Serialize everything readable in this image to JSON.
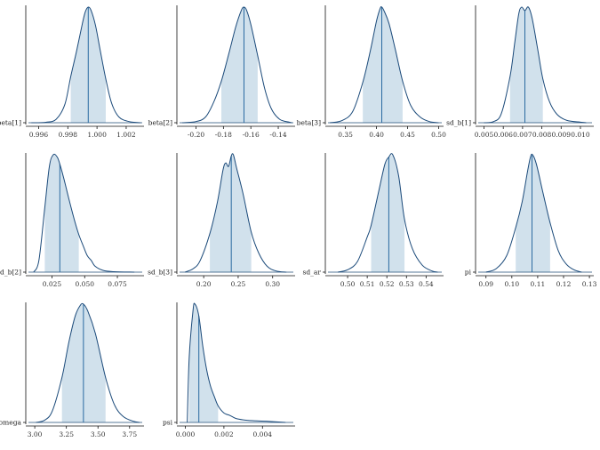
{
  "chart_data": {
    "type": "area",
    "title": "",
    "panels": [
      {
        "param": "beta[1]",
        "xlim": [
          0.9953,
          1.0031
        ],
        "ticks": [
          0.996,
          0.998,
          1.0,
          1.002
        ],
        "tick_labels": [
          "0.996",
          "0.998",
          "1.000",
          "1.002"
        ],
        "median": 0.9994,
        "interval": [
          0.9982,
          1.0006
        ],
        "density": [
          [
            0.9955,
            0
          ],
          [
            0.9965,
            0.004
          ],
          [
            0.9972,
            0.03
          ],
          [
            0.9978,
            0.16
          ],
          [
            0.9982,
            0.4
          ],
          [
            0.9986,
            0.62
          ],
          [
            0.999,
            0.86
          ],
          [
            0.9992,
            0.96
          ],
          [
            0.9994,
            1.0
          ],
          [
            0.9996,
            0.97
          ],
          [
            0.9999,
            0.84
          ],
          [
            1.0002,
            0.64
          ],
          [
            1.0006,
            0.38
          ],
          [
            1.001,
            0.17
          ],
          [
            1.0015,
            0.05
          ],
          [
            1.0022,
            0.01
          ],
          [
            1.003,
            0
          ]
        ]
      },
      {
        "param": "beta[2]",
        "xlim": [
          -0.212,
          -0.129
        ],
        "ticks": [
          -0.2,
          -0.18,
          -0.16,
          -0.14
        ],
        "tick_labels": [
          "-0.20",
          "-0.18",
          "-0.16",
          "-0.14"
        ],
        "median": -0.165,
        "interval": [
          -0.1815,
          -0.155
        ],
        "density": [
          [
            -0.21,
            0
          ],
          [
            -0.2,
            0.01
          ],
          [
            -0.193,
            0.05
          ],
          [
            -0.187,
            0.18
          ],
          [
            -0.1815,
            0.36
          ],
          [
            -0.176,
            0.6
          ],
          [
            -0.171,
            0.83
          ],
          [
            -0.167,
            0.97
          ],
          [
            -0.165,
            1.0
          ],
          [
            -0.163,
            0.97
          ],
          [
            -0.16,
            0.85
          ],
          [
            -0.155,
            0.58
          ],
          [
            -0.15,
            0.3
          ],
          [
            -0.145,
            0.12
          ],
          [
            -0.139,
            0.03
          ],
          [
            -0.132,
            0.005
          ],
          [
            -0.13,
            0
          ]
        ]
      },
      {
        "param": "beta[3]",
        "xlim": [
          0.322,
          0.505
        ],
        "ticks": [
          0.35,
          0.4,
          0.45,
          0.5
        ],
        "tick_labels": [
          "0.35",
          "0.40",
          "0.45",
          "0.50"
        ],
        "median": 0.4085,
        "interval": [
          0.378,
          0.442
        ],
        "density": [
          [
            0.325,
            0
          ],
          [
            0.345,
            0.02
          ],
          [
            0.362,
            0.1
          ],
          [
            0.378,
            0.35
          ],
          [
            0.39,
            0.62
          ],
          [
            0.4,
            0.88
          ],
          [
            0.406,
            0.99
          ],
          [
            0.4085,
            1.0
          ],
          [
            0.412,
            0.97
          ],
          [
            0.42,
            0.86
          ],
          [
            0.43,
            0.64
          ],
          [
            0.442,
            0.36
          ],
          [
            0.455,
            0.15
          ],
          [
            0.47,
            0.05
          ],
          [
            0.485,
            0.01
          ],
          [
            0.5,
            0
          ]
        ]
      },
      {
        "param": "sd_b[1]",
        "xlim": [
          0.0047,
          0.0106
        ],
        "ticks": [
          0.005,
          0.006,
          0.007,
          0.008,
          0.009,
          0.01
        ],
        "tick_labels": [
          "0.005",
          "0.006",
          "0.007",
          "0.008",
          "0.009",
          "0.010"
        ],
        "median": 0.00712,
        "interval": [
          0.00635,
          0.00805
        ],
        "density": [
          [
            0.005,
            0
          ],
          [
            0.0055,
            0.01
          ],
          [
            0.0059,
            0.08
          ],
          [
            0.00635,
            0.4
          ],
          [
            0.0066,
            0.7
          ],
          [
            0.0068,
            0.94
          ],
          [
            0.00695,
            1.0
          ],
          [
            0.00712,
            0.97
          ],
          [
            0.0073,
            1.0
          ],
          [
            0.0075,
            0.9
          ],
          [
            0.0078,
            0.62
          ],
          [
            0.00805,
            0.38
          ],
          [
            0.0084,
            0.18
          ],
          [
            0.0088,
            0.07
          ],
          [
            0.0093,
            0.02
          ],
          [
            0.01,
            0.005
          ],
          [
            0.0103,
            0
          ]
        ]
      },
      {
        "param": "sd_b[2]",
        "xlim": [
          0.007,
          0.094
        ],
        "ticks": [
          0.025,
          0.05,
          0.075
        ],
        "tick_labels": [
          "0.025",
          "0.050",
          "0.075"
        ],
        "median": 0.031,
        "interval": [
          0.0195,
          0.0455
        ],
        "density": [
          [
            0.011,
            0
          ],
          [
            0.015,
            0.1
          ],
          [
            0.0195,
            0.55
          ],
          [
            0.023,
            0.9
          ],
          [
            0.026,
            1.0
          ],
          [
            0.029,
            0.98
          ],
          [
            0.031,
            0.92
          ],
          [
            0.034,
            0.8
          ],
          [
            0.038,
            0.62
          ],
          [
            0.042,
            0.45
          ],
          [
            0.0455,
            0.32
          ],
          [
            0.049,
            0.22
          ],
          [
            0.052,
            0.14
          ],
          [
            0.055,
            0.1
          ],
          [
            0.058,
            0.05
          ],
          [
            0.064,
            0.015
          ],
          [
            0.072,
            0.004
          ],
          [
            0.088,
            0
          ]
        ]
      },
      {
        "param": "sd_b[3]",
        "xlim": [
          0.165,
          0.33
        ],
        "ticks": [
          0.2,
          0.25,
          0.3
        ],
        "tick_labels": [
          "0.20",
          "0.25",
          "0.30"
        ],
        "median": 0.24,
        "interval": [
          0.209,
          0.269
        ],
        "density": [
          [
            0.173,
            0
          ],
          [
            0.185,
            0.03
          ],
          [
            0.195,
            0.1
          ],
          [
            0.209,
            0.33
          ],
          [
            0.22,
            0.6
          ],
          [
            0.228,
            0.87
          ],
          [
            0.232,
            0.93
          ],
          [
            0.236,
            0.9
          ],
          [
            0.24,
            0.99
          ],
          [
            0.243,
            1.0
          ],
          [
            0.248,
            0.88
          ],
          [
            0.257,
            0.67
          ],
          [
            0.269,
            0.34
          ],
          [
            0.28,
            0.16
          ],
          [
            0.292,
            0.05
          ],
          [
            0.305,
            0.01
          ],
          [
            0.32,
            0
          ]
        ]
      },
      {
        "param": "sd_ar",
        "xlim": [
          0.49,
          0.548
        ],
        "ticks": [
          0.5,
          0.51,
          0.52,
          0.53,
          0.54
        ],
        "tick_labels": [
          "0.50",
          "0.51",
          "0.52",
          "0.53",
          "0.54"
        ],
        "median": 0.521,
        "interval": [
          0.512,
          0.529
        ],
        "density": [
          [
            0.495,
            0
          ],
          [
            0.5,
            0.02
          ],
          [
            0.505,
            0.09
          ],
          [
            0.51,
            0.3
          ],
          [
            0.512,
            0.4
          ],
          [
            0.516,
            0.7
          ],
          [
            0.519,
            0.92
          ],
          [
            0.521,
            0.98
          ],
          [
            0.523,
            1.0
          ],
          [
            0.526,
            0.82
          ],
          [
            0.529,
            0.45
          ],
          [
            0.533,
            0.2
          ],
          [
            0.538,
            0.06
          ],
          [
            0.543,
            0.01
          ],
          [
            0.546,
            0
          ]
        ]
      },
      {
        "param": "pi",
        "xlim": [
          0.087,
          0.131
        ],
        "ticks": [
          0.09,
          0.1,
          0.11,
          0.12,
          0.13
        ],
        "tick_labels": [
          "0.09",
          "0.10",
          "0.11",
          "0.12",
          "0.13"
        ],
        "median": 0.1078,
        "interval": [
          0.1015,
          0.1148
        ],
        "density": [
          [
            0.09,
            0
          ],
          [
            0.094,
            0.03
          ],
          [
            0.098,
            0.14
          ],
          [
            0.1015,
            0.38
          ],
          [
            0.104,
            0.6
          ],
          [
            0.106,
            0.85
          ],
          [
            0.1072,
            0.98
          ],
          [
            0.108,
            1.0
          ],
          [
            0.1095,
            0.92
          ],
          [
            0.112,
            0.68
          ],
          [
            0.1148,
            0.42
          ],
          [
            0.118,
            0.18
          ],
          [
            0.121,
            0.07
          ],
          [
            0.124,
            0.02
          ],
          [
            0.127,
            0
          ]
        ]
      },
      {
        "param": "sd_omega",
        "xlim": [
          2.95,
          3.85
        ],
        "ticks": [
          3.0,
          3.25,
          3.5,
          3.75
        ],
        "tick_labels": [
          "3.00",
          "3.25",
          "3.50",
          "3.75"
        ],
        "median": 3.385,
        "interval": [
          3.215,
          3.56
        ],
        "density": [
          [
            3.01,
            0
          ],
          [
            3.08,
            0.02
          ],
          [
            3.14,
            0.1
          ],
          [
            3.215,
            0.38
          ],
          [
            3.27,
            0.68
          ],
          [
            3.32,
            0.9
          ],
          [
            3.36,
            0.99
          ],
          [
            3.385,
            1.0
          ],
          [
            3.42,
            0.94
          ],
          [
            3.48,
            0.75
          ],
          [
            3.56,
            0.38
          ],
          [
            3.63,
            0.15
          ],
          [
            3.7,
            0.05
          ],
          [
            3.78,
            0.01
          ],
          [
            3.83,
            0
          ]
        ]
      },
      {
        "param": "psi",
        "xlim": [
          -0.0003,
          0.0056
        ],
        "ticks": [
          0.0,
          0.002,
          0.004
        ],
        "tick_labels": [
          "0.000",
          "0.002",
          "0.004"
        ],
        "median": 0.0007,
        "interval": [
          0.0002,
          0.0017
        ],
        "density": [
          [
            0.0001,
            0
          ],
          [
            0.0002,
            0.55
          ],
          [
            0.0004,
            0.95
          ],
          [
            0.0005,
            1.0
          ],
          [
            0.0007,
            0.9
          ],
          [
            0.0009,
            0.65
          ],
          [
            0.0011,
            0.45
          ],
          [
            0.0013,
            0.31
          ],
          [
            0.0015,
            0.22
          ],
          [
            0.0017,
            0.14
          ],
          [
            0.002,
            0.08
          ],
          [
            0.0023,
            0.06
          ],
          [
            0.0026,
            0.035
          ],
          [
            0.003,
            0.022
          ],
          [
            0.0035,
            0.015
          ],
          [
            0.0042,
            0.01
          ],
          [
            0.0052,
            0
          ]
        ]
      }
    ]
  }
}
